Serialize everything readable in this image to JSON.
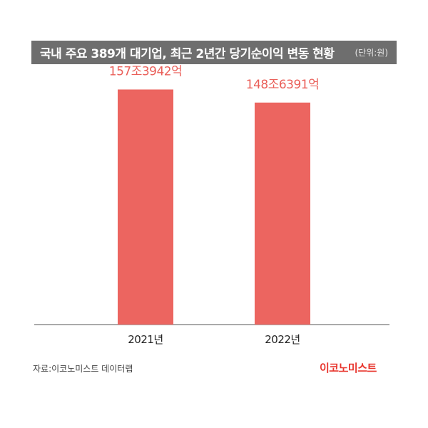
{
  "title": "국내 주요 389개 대기업, 최근 2년간 당기순이익 변동 현황",
  "unit": "(단위:원)",
  "source": "자료:이코노미스트 데이터랩",
  "logo": "이코노미스트",
  "colors": {
    "bar": "#ec6560",
    "label": "#ea5f59",
    "title_bg": "#6e6e6e",
    "axis": "#555555"
  },
  "chart_data": {
    "type": "bar",
    "categories": [
      "2021년",
      "2022년"
    ],
    "values": [
      157.3942,
      148.6391
    ],
    "value_labels": [
      "157조3942억",
      "148조6391억"
    ],
    "unit": "조원",
    "ylim": [
      0,
      160
    ],
    "grid": false,
    "legend": "none"
  }
}
